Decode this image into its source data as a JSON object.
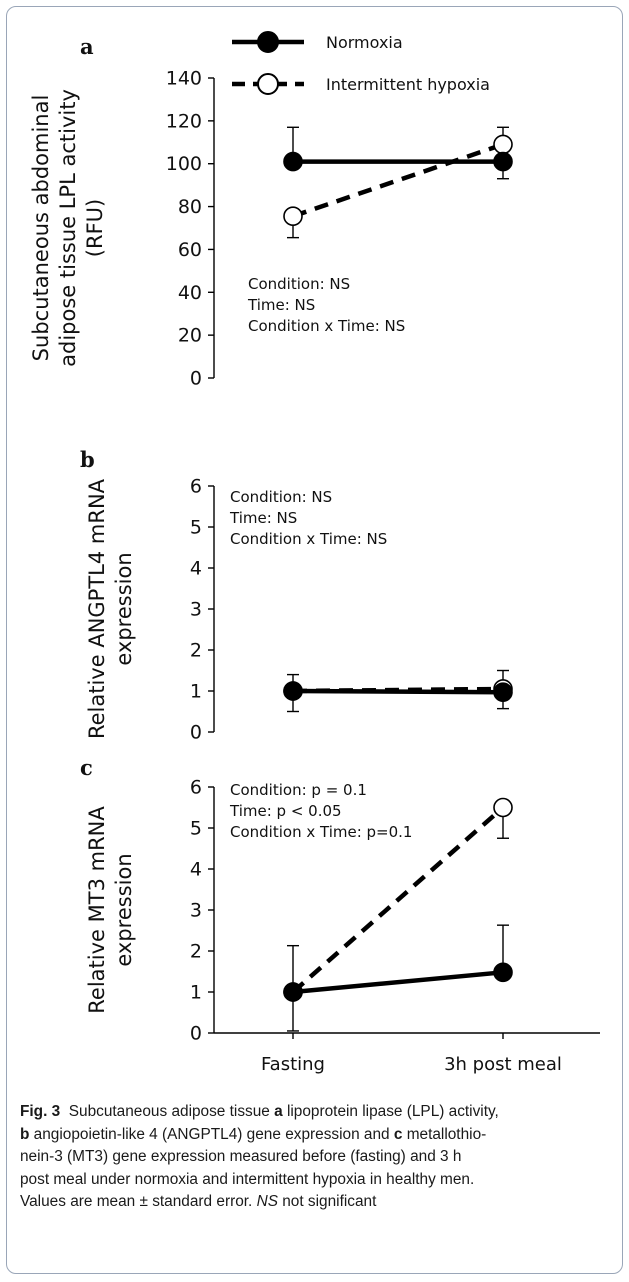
{
  "legend": [
    {
      "label": "Normoxia",
      "style": "solid",
      "marker": "filled-circle"
    },
    {
      "label": "Intermittent  hypoxia",
      "style": "dashed",
      "marker": "open-circle"
    }
  ],
  "x_categories": [
    "Fasting",
    "3h post meal"
  ],
  "colors": {
    "line": "#000000",
    "frame": "#9aa6b8"
  },
  "caption": {
    "fig_label": "Fig. 3",
    "lines": [
      [
        {
          "t": "Subcutaneous adipose tissue ",
          "s": ""
        },
        {
          "t": "a",
          "s": "b"
        },
        {
          "t": " lipoprotein lipase (LPL) activity,",
          "s": ""
        }
      ],
      [
        {
          "t": "b",
          "s": "b"
        },
        {
          "t": " angiopoietin-like 4 (ANGPTL4) gene expression and ",
          "s": ""
        },
        {
          "t": "c",
          "s": "b"
        },
        {
          "t": " metallothio-",
          "s": ""
        }
      ],
      [
        {
          "t": "nein-3 (MT3) gene expression measured before (fasting) and 3 h",
          "s": ""
        }
      ],
      [
        {
          "t": "post meal under normoxia and intermittent hypoxia in healthy men.",
          "s": ""
        }
      ],
      [
        {
          "t": "Values are mean ± standard error. ",
          "s": ""
        },
        {
          "t": "NS",
          "s": "i"
        },
        {
          "t": " not significant",
          "s": ""
        }
      ]
    ]
  },
  "chart_data": [
    {
      "type": "line",
      "panel": "a",
      "ylabel": [
        "Subcutaneous abdominal",
        "adipose tissue LPL activity",
        "(RFU)"
      ],
      "ylim": [
        0,
        140
      ],
      "yticks": [
        0,
        20,
        40,
        60,
        80,
        100,
        120,
        140
      ],
      "categories": [
        "Fasting",
        "3h post meal"
      ],
      "series": [
        {
          "name": "Normoxia",
          "values": [
            101,
            101
          ],
          "errors": [
            16,
            8
          ],
          "error_dir": [
            "up",
            "down"
          ]
        },
        {
          "name": "Intermittent  hypoxia",
          "values": [
            75.5,
            109
          ],
          "errors": [
            10,
            8
          ],
          "error_dir": [
            "down",
            "up"
          ]
        }
      ],
      "annotations": [
        "Condition: NS",
        "Time: NS",
        "Condition x Time: NS"
      ]
    },
    {
      "type": "line",
      "panel": "b",
      "ylabel": [
        "Relative ANGPTL4  mRNA",
        "expression"
      ],
      "ylim": [
        0,
        6
      ],
      "yticks": [
        0,
        1,
        2,
        3,
        4,
        5,
        6
      ],
      "categories": [
        "Fasting",
        "3h post meal"
      ],
      "series": [
        {
          "name": "Normoxia",
          "values": [
            1.0,
            0.97
          ],
          "errors": [
            0.5,
            0.4
          ],
          "error_dir": [
            "down",
            "down"
          ]
        },
        {
          "name": "Intermittent  hypoxia",
          "values": [
            1.0,
            1.05
          ],
          "errors": [
            0.4,
            0.45
          ],
          "error_dir": [
            "up",
            "up"
          ]
        }
      ],
      "annotations": [
        "Condition: NS",
        "Time: NS",
        "Condition x Time: NS"
      ]
    },
    {
      "type": "line",
      "panel": "c",
      "ylabel": [
        "Relative MT3  mRNA",
        "expression"
      ],
      "ylim": [
        0,
        6
      ],
      "yticks": [
        0,
        1,
        2,
        3,
        4,
        5,
        6
      ],
      "categories": [
        "Fasting",
        "3h post meal"
      ],
      "series": [
        {
          "name": "Normoxia",
          "values": [
            1.0,
            1.48
          ],
          "errors": [
            0.95,
            1.15
          ],
          "error_dir": [
            "down",
            "up"
          ]
        },
        {
          "name": "Intermittent  hypoxia",
          "values": [
            1.0,
            5.5
          ],
          "errors": [
            1.13,
            0.75
          ],
          "error_dir": [
            "up",
            "down"
          ]
        }
      ],
      "annotations": [
        "Condition:  p = 0.1",
        "Time: p < 0.05",
        "Condition x Time:  p=0.1"
      ]
    }
  ]
}
